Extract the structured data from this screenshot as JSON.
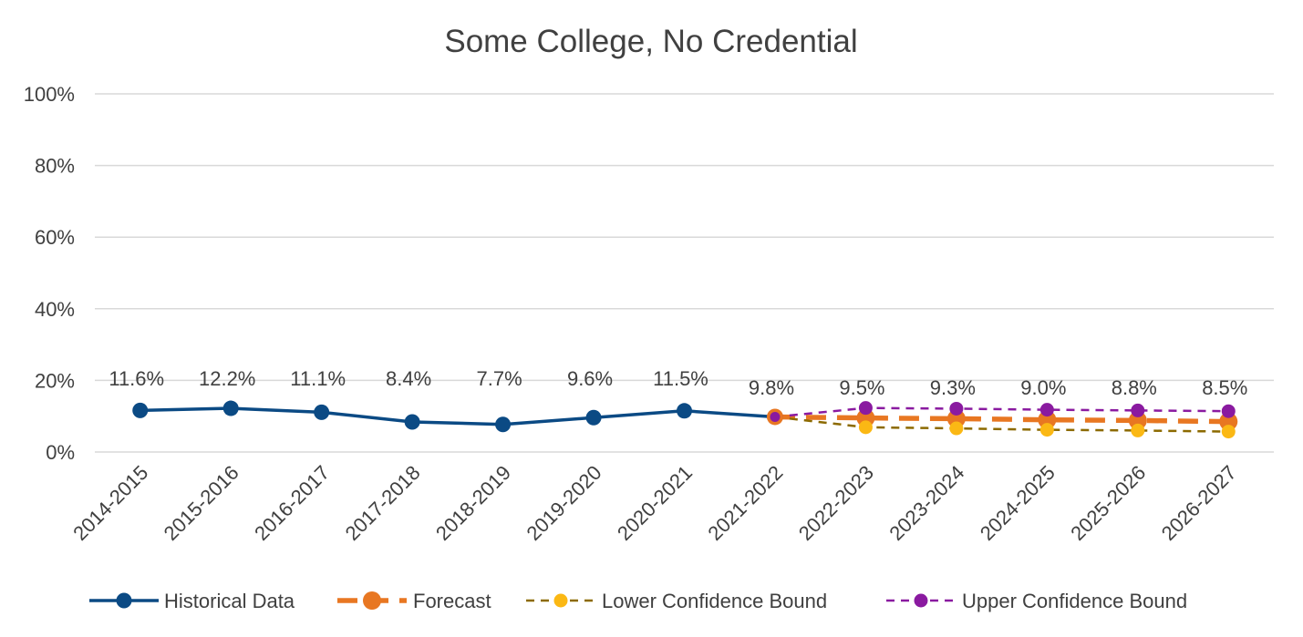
{
  "chart_data": {
    "type": "line",
    "title": "Some College, No Credential",
    "xlabel": "",
    "ylabel": "",
    "ylim": [
      0,
      100
    ],
    "y_ticks": [
      "0%",
      "20%",
      "40%",
      "60%",
      "80%",
      "100%"
    ],
    "grid": true,
    "legend_position": "bottom",
    "categories": [
      "2014-2015",
      "2015-2016",
      "2016-2017",
      "2017-2018",
      "2018-2019",
      "2019-2020",
      "2020-2021",
      "2021-2022",
      "2022-2023",
      "2023-2024",
      "2024-2025",
      "2025-2026",
      "2026-2027"
    ],
    "data_labels": [
      "11.6%",
      "12.2%",
      "11.1%",
      "8.4%",
      "7.7%",
      "9.6%",
      "11.5%",
      "9.8%",
      "9.5%",
      "9.3%",
      "9.0%",
      "8.8%",
      "8.5%"
    ],
    "series": [
      {
        "name": "Historical Data",
        "color": "#0b4a84",
        "style": "solid",
        "values": [
          11.6,
          12.2,
          11.1,
          8.4,
          7.7,
          9.6,
          11.5,
          9.8,
          null,
          null,
          null,
          null,
          null
        ]
      },
      {
        "name": "Forecast",
        "color": "#e87722",
        "style": "dashed",
        "values": [
          null,
          null,
          null,
          null,
          null,
          null,
          null,
          9.8,
          9.5,
          9.3,
          9.0,
          8.8,
          8.5
        ]
      },
      {
        "name": "Lower Confidence Bound",
        "color": "#fbb814",
        "line_color": "#8c6a00",
        "style": "dashed",
        "values": [
          null,
          null,
          null,
          null,
          null,
          null,
          null,
          9.8,
          6.9,
          6.6,
          6.2,
          6.0,
          5.7
        ]
      },
      {
        "name": "Upper Confidence Bound",
        "color": "#8a1aa0",
        "style": "dashed",
        "values": [
          null,
          null,
          null,
          null,
          null,
          null,
          null,
          9.8,
          12.3,
          12.1,
          11.8,
          11.6,
          11.4
        ]
      }
    ]
  }
}
